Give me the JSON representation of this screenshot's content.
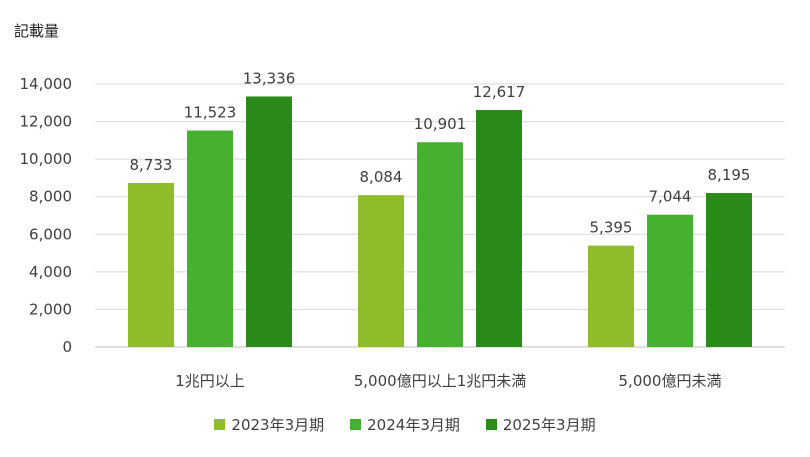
{
  "chart_data": {
    "type": "bar",
    "unit_label": "記載量",
    "categories": [
      "1兆円以上",
      "5,000億円以上1兆円未満",
      "5,000億円未満"
    ],
    "series": [
      {
        "name": "2023年3月期",
        "color": "#8fbc2a",
        "values": [
          8733,
          8084,
          5395
        ],
        "labels": [
          "8,733",
          "8,084",
          "5,395"
        ]
      },
      {
        "name": "2024年3月期",
        "color": "#46b030",
        "values": [
          11523,
          10901,
          7044
        ],
        "labels": [
          "11,523",
          "10,901",
          "7,044"
        ]
      },
      {
        "name": "2025年3月期",
        "color": "#2a8a1a",
        "values": [
          13336,
          12617,
          8195
        ],
        "labels": [
          "13,336",
          "12,617",
          "8,195"
        ]
      }
    ],
    "ylim": [
      0,
      14000
    ],
    "yticks": [
      0,
      2000,
      4000,
      6000,
      8000,
      10000,
      12000,
      14000
    ],
    "ytick_labels": [
      "0",
      "2,000",
      "4,000",
      "6,000",
      "8,000",
      "10,000",
      "12,000",
      "14,000"
    ],
    "grid": true,
    "legend_position": "bottom"
  }
}
